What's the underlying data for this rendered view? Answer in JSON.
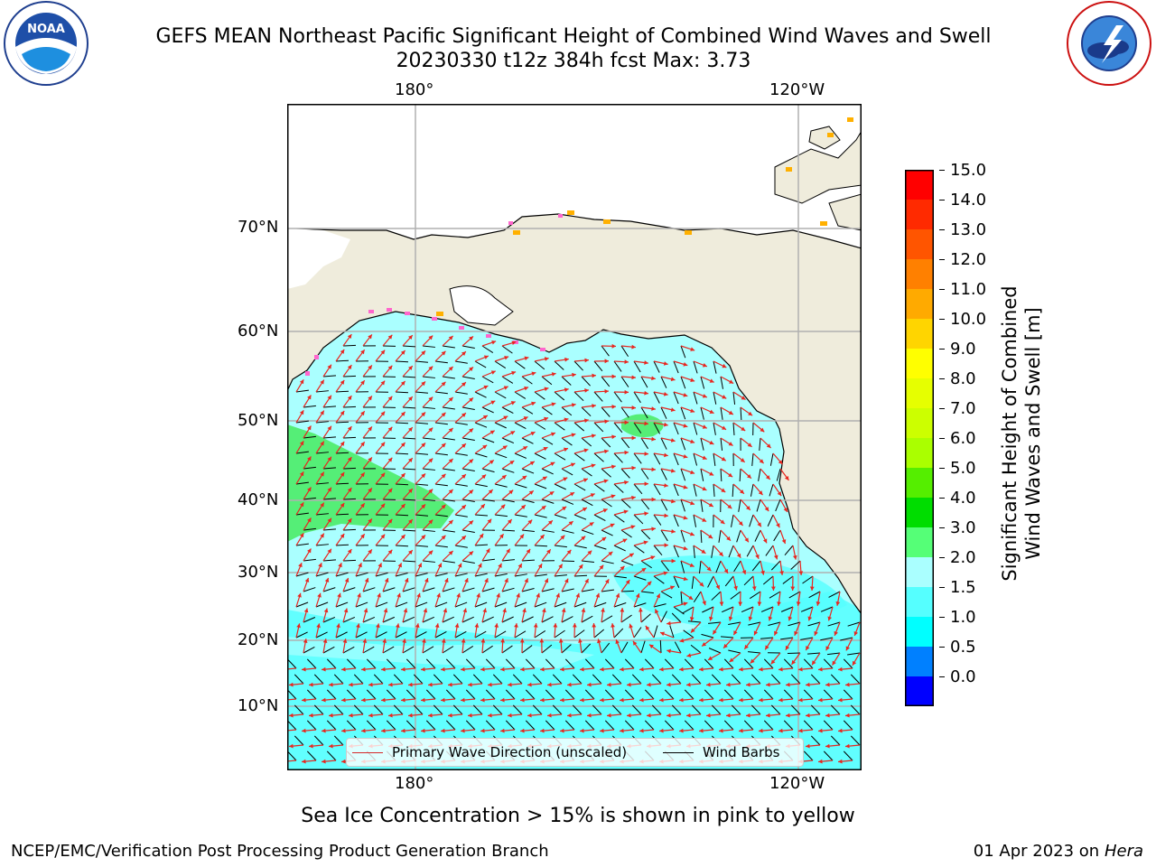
{
  "header": {
    "title_line1": "GEFS MEAN Northeast Pacific Significant Height of Combined Wind Waves and Swell",
    "title_line2": "20230330 t12z 384h fcst   Max: 3.73"
  },
  "logos": {
    "left": {
      "icon": "noaa-logo-icon",
      "text": "NOAA",
      "ring_text": "NATIONAL OCEANIC AND ATMOSPHERIC ADMINISTRATION · U.S. DEPARTMENT OF COMMERCE"
    },
    "right": {
      "icon": "nws-logo-icon",
      "ring_text": "NATIONAL WEATHER SERVICE"
    }
  },
  "map": {
    "lon_labels_top": [
      "180°",
      "120°W"
    ],
    "lon_labels_bottom": [
      "180°",
      "120°W"
    ],
    "lat_labels": [
      "70°N",
      "60°N",
      "50°N",
      "40°N",
      "30°N",
      "20°N",
      "10°N"
    ],
    "colors": {
      "land": "#efecdc",
      "wave_low": "#aaffff",
      "wave_mid": "#55ffff",
      "wave_high": "#55ee77",
      "arrow": "#e8261f",
      "barb": "#000000",
      "grid": "#b0b0b0",
      "ice": "#ff66cc"
    }
  },
  "legend": {
    "items": [
      {
        "label": "Primary Wave Direction (unscaled)",
        "color": "#d62728"
      },
      {
        "label": "Wind Barbs",
        "color": "#000000"
      }
    ]
  },
  "colorbar": {
    "label_line1": "Significant Height of Combined",
    "label_line2": "Wind Waves and Swell [m]",
    "ticks": [
      "15.0",
      "14.0",
      "13.0",
      "12.0",
      "11.0",
      "10.0",
      "9.0",
      "8.0",
      "7.0",
      "6.0",
      "5.0",
      "4.0",
      "3.0",
      "2.0",
      "1.5",
      "1.0",
      "0.5",
      "0.0"
    ],
    "colors_top_to_bottom": [
      "#ff0000",
      "#ff2a00",
      "#ff5500",
      "#ff8000",
      "#ffaa00",
      "#ffd500",
      "#ffff00",
      "#e6ff00",
      "#ccff00",
      "#aaff00",
      "#55ee00",
      "#00dd00",
      "#55ff77",
      "#aaffff",
      "#55ffff",
      "#00ffff",
      "#0080ff",
      "#0000ff"
    ]
  },
  "footer": {
    "note": "Sea Ice Concentration > 15% is shown in pink to yellow",
    "credit": "NCEP/EMC/Verification Post Processing Product Generation Branch",
    "date_text": "01 Apr 2023 on ",
    "machine": "Hera"
  }
}
